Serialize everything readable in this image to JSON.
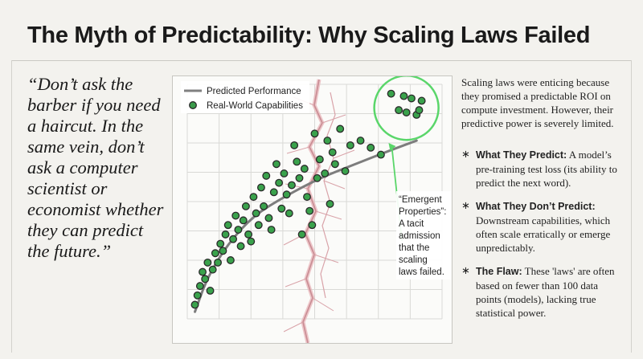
{
  "title": "The Myth of Predictability: Why Scaling Laws Failed",
  "quote": "“Don’t ask the barber if you need a haircut. In the same vein, don’t ask a computer scientist or economist whether they can predict the future.”",
  "chart_data": {
    "type": "scatter",
    "legend": [
      {
        "label": "Predicted Performance",
        "kind": "line",
        "color": "#808080"
      },
      {
        "label": "Real-World Capabilities",
        "kind": "point",
        "color": "#3a9a4a"
      }
    ],
    "legend_position": "top-left",
    "annotation": {
      "lines": [
        "“Emergent",
        "Properties”:",
        "A tacit",
        "admission",
        "that the",
        "scaling",
        "laws failed."
      ],
      "highlight_color": "#5ad66a"
    },
    "xlim": [
      0,
      100
    ],
    "ylim": [
      0,
      100
    ],
    "grid": true,
    "predicted_curve": [
      [
        3,
        3
      ],
      [
        8,
        18
      ],
      [
        16,
        32
      ],
      [
        26,
        44
      ],
      [
        38,
        52
      ],
      [
        52,
        60
      ],
      [
        66,
        66
      ],
      [
        80,
        72
      ],
      [
        90,
        76
      ]
    ],
    "points": [
      [
        3,
        6
      ],
      [
        4,
        10
      ],
      [
        5,
        14
      ],
      [
        6,
        20
      ],
      [
        7,
        17
      ],
      [
        8,
        24
      ],
      [
        9,
        12
      ],
      [
        10,
        21
      ],
      [
        11,
        28
      ],
      [
        12,
        24
      ],
      [
        13,
        32
      ],
      [
        14,
        29
      ],
      [
        15,
        36
      ],
      [
        16,
        40
      ],
      [
        17,
        25
      ],
      [
        18,
        34
      ],
      [
        19,
        44
      ],
      [
        20,
        38
      ],
      [
        21,
        31
      ],
      [
        22,
        42
      ],
      [
        23,
        48
      ],
      [
        24,
        36
      ],
      [
        25,
        33
      ],
      [
        26,
        52
      ],
      [
        27,
        45
      ],
      [
        28,
        40
      ],
      [
        29,
        56
      ],
      [
        30,
        48
      ],
      [
        31,
        61
      ],
      [
        32,
        43
      ],
      [
        33,
        38
      ],
      [
        34,
        54
      ],
      [
        35,
        66
      ],
      [
        36,
        58
      ],
      [
        37,
        47
      ],
      [
        38,
        62
      ],
      [
        39,
        53
      ],
      [
        40,
        45
      ],
      [
        41,
        57
      ],
      [
        42,
        74
      ],
      [
        43,
        67
      ],
      [
        44,
        60
      ],
      [
        45,
        36
      ],
      [
        46,
        64
      ],
      [
        47,
        52
      ],
      [
        48,
        46
      ],
      [
        49,
        40
      ],
      [
        50,
        79
      ],
      [
        51,
        60
      ],
      [
        52,
        68
      ],
      [
        54,
        62
      ],
      [
        55,
        76
      ],
      [
        56,
        49
      ],
      [
        57,
        71
      ],
      [
        58,
        66
      ],
      [
        60,
        81
      ],
      [
        62,
        63
      ],
      [
        64,
        74
      ],
      [
        68,
        76
      ],
      [
        72,
        73
      ],
      [
        76,
        70
      ],
      [
        80,
        96
      ],
      [
        83,
        89
      ],
      [
        85,
        95
      ],
      [
        88,
        94
      ],
      [
        86,
        88
      ],
      [
        90,
        87
      ],
      [
        92,
        93
      ],
      [
        91,
        89
      ]
    ]
  },
  "right": {
    "intro": "Scaling laws were enticing because they promised a predictable ROI on compute investment. However, their predictive power is severely limited.",
    "bullets": [
      {
        "star": "∗",
        "head": "What They Predict:",
        "text": " A model’s pre-training test loss (its ability to predict the next word)."
      },
      {
        "star": "∗",
        "head": "What They Don’t Predict:",
        "text": " Downstream capabilities, which often scale erratically or emerge unpredictably."
      },
      {
        "star": "∗",
        "head": "The Flaw:",
        "text": " These 'laws' are often based on fewer than 100 data points (models), lacking true statistical power."
      }
    ]
  }
}
